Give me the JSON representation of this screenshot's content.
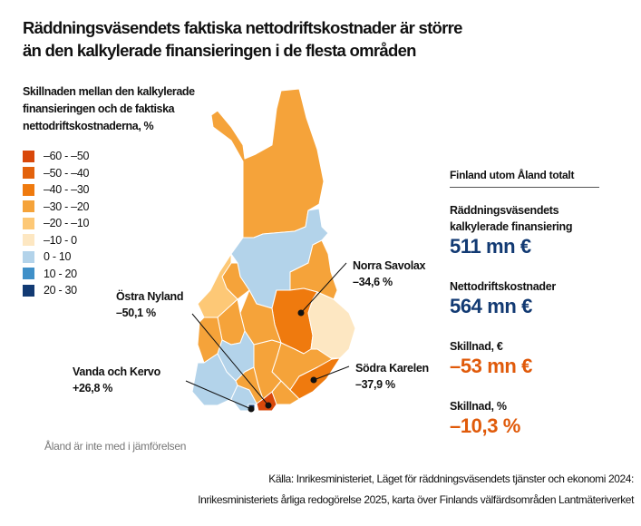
{
  "title": [
    "Räddningsväsendets faktiska nettodriftskostnader är större",
    "än den kalkylerade finansieringen i de flesta områden"
  ],
  "subtitle": [
    "Skillnaden mellan den kalkylerade",
    "finansieringen och de faktiska",
    "nettodriftskostnaderna, %"
  ],
  "legend": [
    {
      "label": "–60 - –50",
      "color": "#d9480a"
    },
    {
      "label": "–50 - –40",
      "color": "#e3620c"
    },
    {
      "label": "–40 - –30",
      "color": "#ef7a0e"
    },
    {
      "label": "–30 - –20",
      "color": "#f5a33a"
    },
    {
      "label": "–20 - –10",
      "color": "#fdc876"
    },
    {
      "label": "–10 - 0",
      "color": "#fde7c2"
    },
    {
      "label": "0 - 10",
      "color": "#b3d3ea"
    },
    {
      "label": "10 - 20",
      "color": "#4090c8"
    },
    {
      "label": "20 - 30",
      "color": "#123a73"
    }
  ],
  "callouts": {
    "norra_savolax": {
      "name": "Norra Savolax",
      "value": "–34,6 %"
    },
    "ostra_nyland": {
      "name": "Östra Nyland",
      "value": "–50,1 %"
    },
    "vanda_kervo": {
      "name": "Vanda och Kervo",
      "value": "+26,8 %"
    },
    "sodra_karelen": {
      "name": "Södra Karelen",
      "value": "–37,9 %"
    }
  },
  "panel": {
    "heading": "Finland utom Åland totalt",
    "items": [
      {
        "label": [
          "Räddningsväsendets",
          "kalkylerade finansiering"
        ],
        "value": "511 mn €"
      },
      {
        "label": [
          "Nettodriftskostnader"
        ],
        "value": "564 mn €"
      },
      {
        "label": [
          "Skillnad, €"
        ],
        "value": "–53 mn €"
      },
      {
        "label": [
          "Skillnad, %"
        ],
        "value": "–10,3 %"
      }
    ]
  },
  "note": "Åland är inte med i jämförelsen",
  "source": [
    "Källa: Inrikesministeriet, Läget för räddningsväsendets tjänster och ekonomi 2024:",
    "Inrikesministeriets årliga redogörelse 2025, karta över Finlands välfärdsområden Lantmäteriverket"
  ]
}
